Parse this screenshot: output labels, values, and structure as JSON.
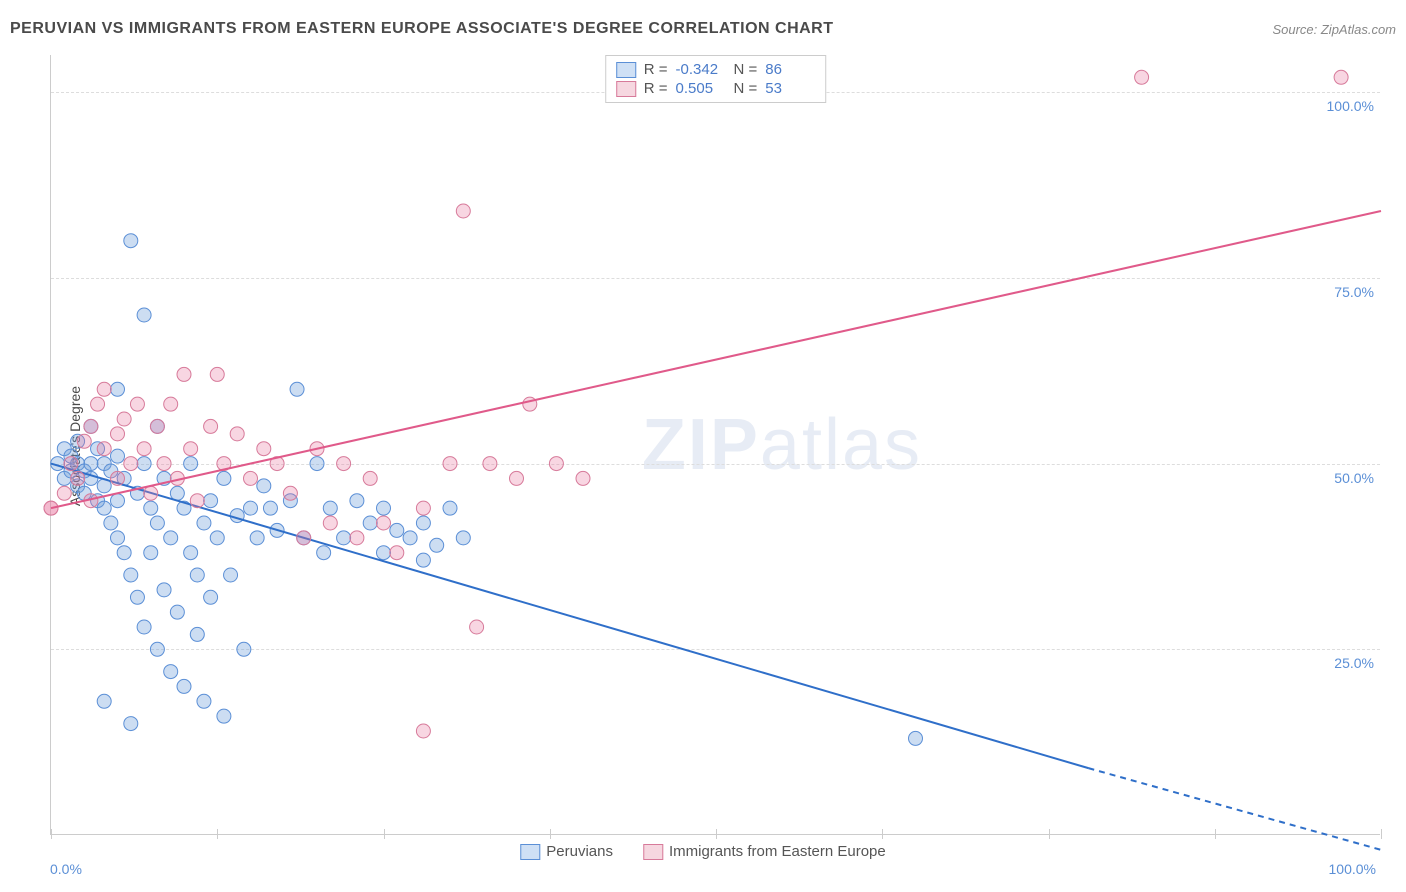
{
  "title": "PERUVIAN VS IMMIGRANTS FROM EASTERN EUROPE ASSOCIATE'S DEGREE CORRELATION CHART",
  "source": "Source: ZipAtlas.com",
  "watermark_part1": "ZIP",
  "watermark_part2": "atlas",
  "y_axis_title": "Associate's Degree",
  "chart": {
    "type": "scatter-with-regression",
    "xlim": [
      0,
      100
    ],
    "ylim": [
      0,
      105
    ],
    "y_ticks": [
      25,
      50,
      75,
      100
    ],
    "y_tick_labels": [
      "25.0%",
      "50.0%",
      "75.0%",
      "100.0%"
    ],
    "x_tick_positions": [
      0,
      12.5,
      25,
      37.5,
      50,
      62.5,
      75,
      87.5,
      100
    ],
    "x_label_min": "0.0%",
    "x_label_max": "100.0%",
    "grid_color": "#dddddd",
    "background": "#ffffff",
    "axis_color": "#cccccc",
    "tick_label_color": "#5b8fd6",
    "series": [
      {
        "name": "Peruvians",
        "marker_fill": "rgba(109,158,219,0.35)",
        "marker_stroke": "#5b8fd6",
        "swatch_fill": "#cfe0f5",
        "swatch_border": "#5b8fd6",
        "line_color": "#2f6fc9",
        "line_width": 2,
        "R": "-0.342",
        "N": "86",
        "regression": {
          "x1": 0,
          "y1": 50,
          "x2": 78,
          "y2": 9,
          "dashed_x2": 100,
          "dashed_y2": -2
        },
        "points": [
          [
            0.5,
            50
          ],
          [
            1,
            48
          ],
          [
            1,
            52
          ],
          [
            1.5,
            49
          ],
          [
            1.5,
            51
          ],
          [
            2,
            47
          ],
          [
            2,
            50
          ],
          [
            2,
            53
          ],
          [
            2.5,
            46
          ],
          [
            2.5,
            49
          ],
          [
            3,
            50
          ],
          [
            3,
            48
          ],
          [
            3,
            55
          ],
          [
            3.5,
            45
          ],
          [
            3.5,
            52
          ],
          [
            4,
            47
          ],
          [
            4,
            50
          ],
          [
            4,
            44
          ],
          [
            4.5,
            49
          ],
          [
            4.5,
            42
          ],
          [
            5,
            51
          ],
          [
            5,
            40
          ],
          [
            5,
            60
          ],
          [
            5.5,
            38
          ],
          [
            5.5,
            48
          ],
          [
            6,
            80
          ],
          [
            6,
            35
          ],
          [
            6.5,
            46
          ],
          [
            6.5,
            32
          ],
          [
            7,
            50
          ],
          [
            7,
            70
          ],
          [
            7,
            28
          ],
          [
            7.5,
            44
          ],
          [
            7.5,
            38
          ],
          [
            8,
            42
          ],
          [
            8,
            25
          ],
          [
            8.5,
            48
          ],
          [
            8.5,
            33
          ],
          [
            9,
            40
          ],
          [
            9,
            22
          ],
          [
            9.5,
            46
          ],
          [
            9.5,
            30
          ],
          [
            10,
            44
          ],
          [
            10,
            20
          ],
          [
            10.5,
            38
          ],
          [
            10.5,
            50
          ],
          [
            11,
            35
          ],
          [
            11,
            27
          ],
          [
            11.5,
            42
          ],
          [
            11.5,
            18
          ],
          [
            12,
            45
          ],
          [
            12,
            32
          ],
          [
            12.5,
            40
          ],
          [
            13,
            16
          ],
          [
            13,
            48
          ],
          [
            13.5,
            35
          ],
          [
            14,
            43
          ],
          [
            14.5,
            25
          ],
          [
            15,
            44
          ],
          [
            15.5,
            40
          ],
          [
            16,
            47
          ],
          [
            16.5,
            44
          ],
          [
            17,
            41
          ],
          [
            18,
            45
          ],
          [
            18.5,
            60
          ],
          [
            19,
            40
          ],
          [
            20,
            50
          ],
          [
            20.5,
            38
          ],
          [
            21,
            44
          ],
          [
            22,
            40
          ],
          [
            23,
            45
          ],
          [
            24,
            42
          ],
          [
            25,
            44
          ],
          [
            25,
            38
          ],
          [
            26,
            41
          ],
          [
            27,
            40
          ],
          [
            28,
            42
          ],
          [
            28,
            37
          ],
          [
            29,
            39
          ],
          [
            30,
            44
          ],
          [
            31,
            40
          ],
          [
            65,
            13
          ],
          [
            4,
            18
          ],
          [
            6,
            15
          ],
          [
            5,
            45
          ],
          [
            8,
            55
          ]
        ]
      },
      {
        "name": "Immigrants from Eastern Europe",
        "marker_fill": "rgba(232,120,160,0.3)",
        "marker_stroke": "#d77a9a",
        "swatch_fill": "#f6d7e0",
        "swatch_border": "#d77a9a",
        "line_color": "#e05a8a",
        "line_width": 2,
        "R": "0.505",
        "N": "53",
        "regression": {
          "x1": 0,
          "y1": 44,
          "x2": 100,
          "y2": 84
        },
        "points": [
          [
            0,
            44
          ],
          [
            1,
            46
          ],
          [
            1.5,
            50
          ],
          [
            2,
            48
          ],
          [
            2.5,
            53
          ],
          [
            3,
            55
          ],
          [
            3,
            45
          ],
          [
            3.5,
            58
          ],
          [
            4,
            52
          ],
          [
            4,
            60
          ],
          [
            5,
            54
          ],
          [
            5,
            48
          ],
          [
            5.5,
            56
          ],
          [
            6,
            50
          ],
          [
            6.5,
            58
          ],
          [
            7,
            52
          ],
          [
            7.5,
            46
          ],
          [
            8,
            55
          ],
          [
            8.5,
            50
          ],
          [
            9,
            58
          ],
          [
            9.5,
            48
          ],
          [
            10,
            62
          ],
          [
            10.5,
            52
          ],
          [
            11,
            45
          ],
          [
            12,
            55
          ],
          [
            12.5,
            62
          ],
          [
            13,
            50
          ],
          [
            14,
            54
          ],
          [
            15,
            48
          ],
          [
            16,
            52
          ],
          [
            17,
            50
          ],
          [
            18,
            46
          ],
          [
            19,
            40
          ],
          [
            20,
            52
          ],
          [
            21,
            42
          ],
          [
            22,
            50
          ],
          [
            23,
            40
          ],
          [
            24,
            48
          ],
          [
            25,
            42
          ],
          [
            26,
            38
          ],
          [
            28,
            44
          ],
          [
            30,
            50
          ],
          [
            31,
            84
          ],
          [
            32,
            28
          ],
          [
            33,
            50
          ],
          [
            35,
            48
          ],
          [
            36,
            58
          ],
          [
            38,
            50
          ],
          [
            40,
            48
          ],
          [
            82,
            102
          ],
          [
            97,
            102
          ],
          [
            28,
            14
          ],
          [
            0,
            44
          ]
        ]
      }
    ]
  },
  "stats_legend": {
    "label_R": "R =",
    "label_N": "N ="
  }
}
